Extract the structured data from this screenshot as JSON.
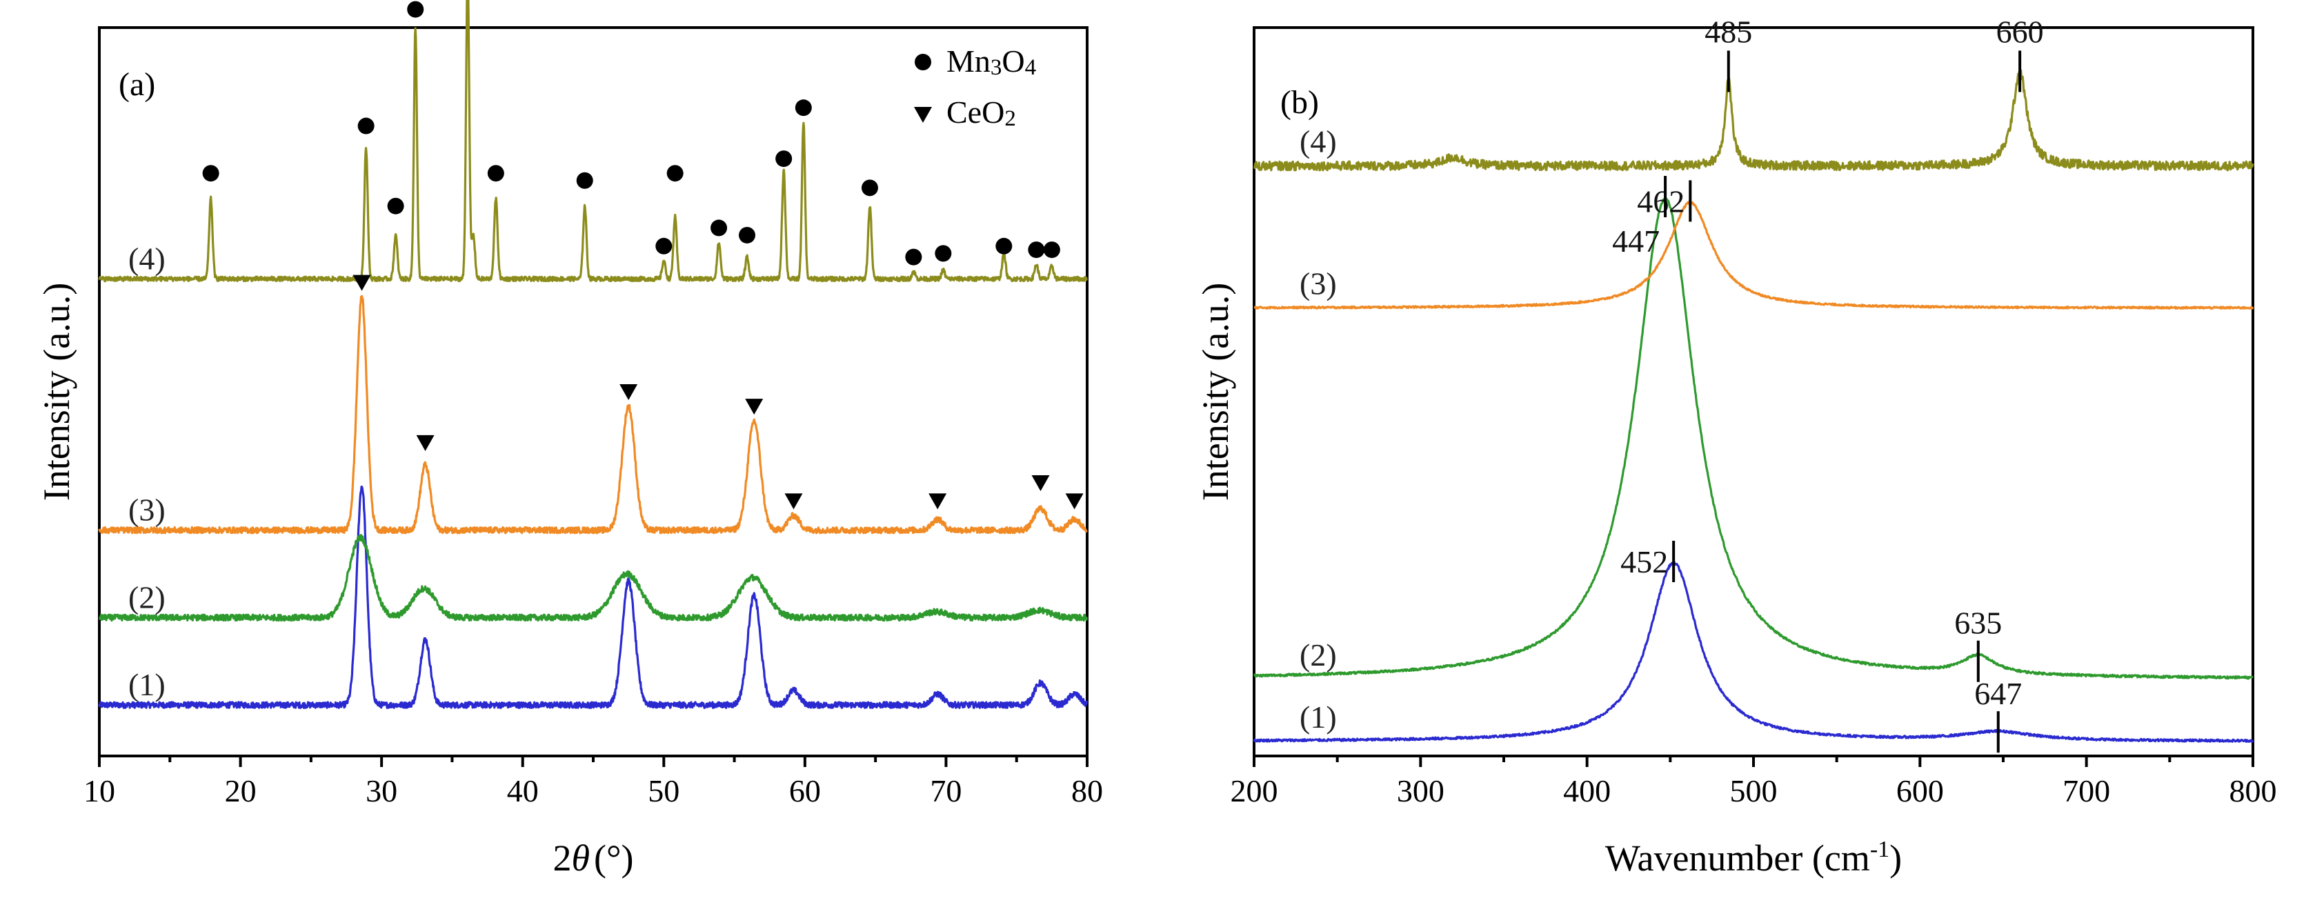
{
  "chart_data": [
    {
      "type": "line",
      "panel": "(a)",
      "xlabel_main": "2",
      "xlabel_theta": "θ",
      "xlabel_unit": "(°)",
      "ylabel": "Intensity (a.u.)",
      "xlim": [
        10,
        80
      ],
      "xticks": [
        "10",
        "20",
        "30",
        "40",
        "50",
        "60",
        "70",
        "80"
      ],
      "legend": {
        "placement": "top-right",
        "entries": [
          {
            "marker": "circle",
            "base": "Mn",
            "sub1": "3",
            "mid": "O",
            "sub2": "4"
          },
          {
            "marker": "triangle-down",
            "base": "CeO",
            "sub1": "2",
            "mid": "",
            "sub2": ""
          }
        ]
      },
      "series": [
        {
          "name": "(1)",
          "color": "#2a2ad0",
          "baseline": 0.07,
          "noise": 0.004,
          "peaks": [
            [
              28.6,
              0.3,
              0.35
            ],
            [
              33.1,
              0.09,
              0.35
            ],
            [
              47.5,
              0.17,
              0.45
            ],
            [
              56.4,
              0.15,
              0.45
            ],
            [
              59.2,
              0.02,
              0.4
            ],
            [
              69.4,
              0.015,
              0.4
            ],
            [
              76.7,
              0.03,
              0.45
            ],
            [
              79.1,
              0.015,
              0.4
            ]
          ]
        },
        {
          "name": "(2)",
          "color": "#2e9a2e",
          "baseline": 0.19,
          "noise": 0.004,
          "peaks": [
            [
              28.5,
              0.11,
              0.8
            ],
            [
              33.0,
              0.04,
              0.8
            ],
            [
              47.4,
              0.06,
              1.0
            ],
            [
              56.3,
              0.055,
              1.0
            ],
            [
              69.3,
              0.008,
              0.8
            ],
            [
              76.6,
              0.01,
              0.8
            ]
          ]
        },
        {
          "name": "(3)",
          "color": "#f08a24",
          "baseline": 0.31,
          "noise": 0.004,
          "peaks": [
            [
              28.6,
              0.32,
              0.35
            ],
            [
              33.1,
              0.09,
              0.35
            ],
            [
              47.5,
              0.17,
              0.45
            ],
            [
              56.4,
              0.15,
              0.45
            ],
            [
              59.2,
              0.02,
              0.4
            ],
            [
              69.4,
              0.015,
              0.4
            ],
            [
              76.7,
              0.03,
              0.45
            ],
            [
              79.1,
              0.015,
              0.4
            ]
          ]
        },
        {
          "name": "(4)",
          "color": "#8c8c1c",
          "baseline": 0.655,
          "noise": 0.003,
          "peaks": [
            [
              17.9,
              0.11,
              0.12
            ],
            [
              28.9,
              0.18,
              0.12
            ],
            [
              31.0,
              0.06,
              0.12
            ],
            [
              32.4,
              0.345,
              0.11
            ],
            [
              36.1,
              0.425,
              0.11
            ],
            [
              36.5,
              0.06,
              0.12
            ],
            [
              38.1,
              0.11,
              0.12
            ],
            [
              44.4,
              0.1,
              0.12
            ],
            [
              50.0,
              0.025,
              0.12
            ],
            [
              50.8,
              0.085,
              0.12
            ],
            [
              53.9,
              0.05,
              0.12
            ],
            [
              55.9,
              0.03,
              0.12
            ],
            [
              58.5,
              0.15,
              0.12
            ],
            [
              59.9,
              0.215,
              0.11
            ],
            [
              64.6,
              0.1,
              0.12
            ],
            [
              67.7,
              0.01,
              0.12
            ],
            [
              69.8,
              0.012,
              0.12
            ],
            [
              74.1,
              0.035,
              0.12
            ],
            [
              76.4,
              0.02,
              0.12
            ],
            [
              77.5,
              0.018,
              0.12
            ]
          ]
        }
      ],
      "markers": [
        {
          "kind": "circle",
          "x": 17.9,
          "y": 0.8
        },
        {
          "kind": "circle",
          "x": 28.9,
          "y": 0.865
        },
        {
          "kind": "circle",
          "x": 31.0,
          "y": 0.755
        },
        {
          "kind": "circle",
          "x": 32.4,
          "y": 1.025
        },
        {
          "kind": "circle",
          "x": 36.1,
          "y": 1.1
        },
        {
          "kind": "circle",
          "x": 38.1,
          "y": 0.8
        },
        {
          "kind": "circle",
          "x": 44.4,
          "y": 0.79
        },
        {
          "kind": "circle",
          "x": 50.0,
          "y": 0.7
        },
        {
          "kind": "circle",
          "x": 50.8,
          "y": 0.8
        },
        {
          "kind": "circle",
          "x": 53.9,
          "y": 0.725
        },
        {
          "kind": "circle",
          "x": 55.9,
          "y": 0.715
        },
        {
          "kind": "circle",
          "x": 58.5,
          "y": 0.82
        },
        {
          "kind": "circle",
          "x": 59.9,
          "y": 0.89
        },
        {
          "kind": "circle",
          "x": 64.6,
          "y": 0.78
        },
        {
          "kind": "circle",
          "x": 67.7,
          "y": 0.685
        },
        {
          "kind": "circle",
          "x": 69.8,
          "y": 0.69
        },
        {
          "kind": "circle",
          "x": 74.1,
          "y": 0.7
        },
        {
          "kind": "circle",
          "x": 76.4,
          "y": 0.695
        },
        {
          "kind": "circle",
          "x": 77.5,
          "y": 0.695
        },
        {
          "kind": "triangle",
          "x": 28.6,
          "y": 0.65
        },
        {
          "kind": "triangle",
          "x": 33.1,
          "y": 0.43
        },
        {
          "kind": "triangle",
          "x": 47.5,
          "y": 0.5
        },
        {
          "kind": "triangle",
          "x": 56.4,
          "y": 0.48
        },
        {
          "kind": "triangle",
          "x": 59.2,
          "y": 0.35
        },
        {
          "kind": "triangle",
          "x": 69.4,
          "y": 0.35
        },
        {
          "kind": "triangle",
          "x": 76.7,
          "y": 0.375
        },
        {
          "kind": "triangle",
          "x": 79.1,
          "y": 0.35
        }
      ]
    },
    {
      "type": "line",
      "panel": "(b)",
      "xlabel_main": "Wavenumber (cm",
      "xlabel_sup": "-1",
      "xlabel_end": ")",
      "ylabel": "Intensity (a.u.)",
      "xlim": [
        200,
        800
      ],
      "xticks": [
        "200",
        "300",
        "400",
        "500",
        "600",
        "700",
        "800"
      ],
      "series": [
        {
          "name": "(1)",
          "color": "#2a2ad0",
          "baseline": 0.02,
          "noise": 0.0015,
          "peaks": [
            [
              452,
              0.245,
              18,
              "lorentz"
            ],
            [
              647,
              0.012,
              25,
              "lorentz"
            ]
          ]
        },
        {
          "name": "(2)",
          "color": "#2e9a2e",
          "baseline": 0.105,
          "noise": 0.0015,
          "peaks": [
            [
              447,
              0.66,
              22,
              "lorentz"
            ],
            [
              635,
              0.025,
              12,
              "lorentz"
            ]
          ]
        },
        {
          "name": "(3)",
          "color": "#f08a24",
          "baseline": 0.615,
          "noise": 0.0012,
          "peaks": [
            [
              462,
              0.145,
              16,
              "lorentz"
            ]
          ]
        },
        {
          "name": "(4)",
          "color": "#8c8c1c",
          "baseline": 0.81,
          "noise": 0.006,
          "peaks": [
            [
              485,
              0.12,
              2.5,
              "lorentz"
            ],
            [
              660,
              0.13,
              5,
              "lorentz"
            ],
            [
              320,
              0.012,
              8,
              "lorentz"
            ]
          ]
        }
      ],
      "annotations": [
        {
          "label": "485",
          "x": 485,
          "y": 0.94
        },
        {
          "label": "660",
          "x": 660,
          "y": 0.94
        },
        {
          "label": "462",
          "x": 462,
          "y": 0.762
        },
        {
          "label": "447",
          "x": 447,
          "y": 0.768
        },
        {
          "label": "452",
          "x": 452,
          "y": 0.267
        },
        {
          "label": "635",
          "x": 635,
          "y": 0.13
        },
        {
          "label": "647",
          "x": 647,
          "y": 0.033
        }
      ]
    }
  ]
}
